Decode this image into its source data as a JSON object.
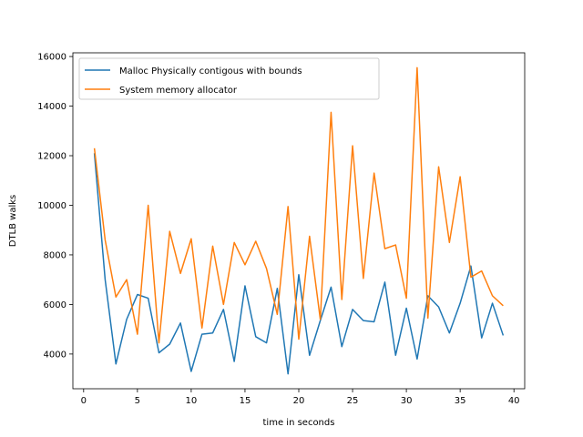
{
  "chart_data": {
    "type": "line",
    "xlabel": "time in seconds",
    "ylabel": "DTLB walks",
    "xlim": [
      -1,
      41
    ],
    "ylim": [
      2600,
      16150
    ],
    "xticks": [
      0,
      5,
      10,
      15,
      20,
      25,
      30,
      35,
      40
    ],
    "yticks": [
      4000,
      6000,
      8000,
      10000,
      12000,
      14000,
      16000
    ],
    "grid": false,
    "legend_position": "top-left",
    "x": [
      1,
      2,
      3,
      4,
      5,
      6,
      7,
      8,
      9,
      10,
      11,
      12,
      13,
      14,
      15,
      16,
      17,
      18,
      19,
      20,
      21,
      22,
      23,
      24,
      25,
      26,
      27,
      28,
      29,
      30,
      31,
      32,
      33,
      34,
      35,
      36,
      37,
      38,
      39
    ],
    "series": [
      {
        "name": "Malloc Physically contigous with bounds",
        "color": "#1f77b4",
        "values": [
          12100,
          7000,
          3600,
          5400,
          6400,
          6250,
          4050,
          4400,
          5250,
          3300,
          4800,
          4850,
          5800,
          3700,
          6750,
          4700,
          4450,
          6650,
          3200,
          7200,
          3950,
          5350,
          6700,
          4300,
          5800,
          5350,
          5300,
          6900,
          3950,
          5850,
          3800,
          6350,
          5900,
          4850,
          6050,
          7550,
          4650,
          6050,
          4750
        ]
      },
      {
        "name": "System memory allocator",
        "color": "#ff7f0e",
        "values": [
          12300,
          8600,
          6300,
          7000,
          4800,
          10000,
          4450,
          8950,
          7250,
          8650,
          5050,
          8350,
          6000,
          8500,
          7600,
          8550,
          7450,
          5600,
          9950,
          4600,
          8750,
          5400,
          13750,
          6200,
          12400,
          7050,
          11300,
          8250,
          8400,
          6250,
          15550,
          5450,
          11550,
          8500,
          11150,
          7100,
          7350,
          6350,
          5950
        ]
      }
    ]
  }
}
